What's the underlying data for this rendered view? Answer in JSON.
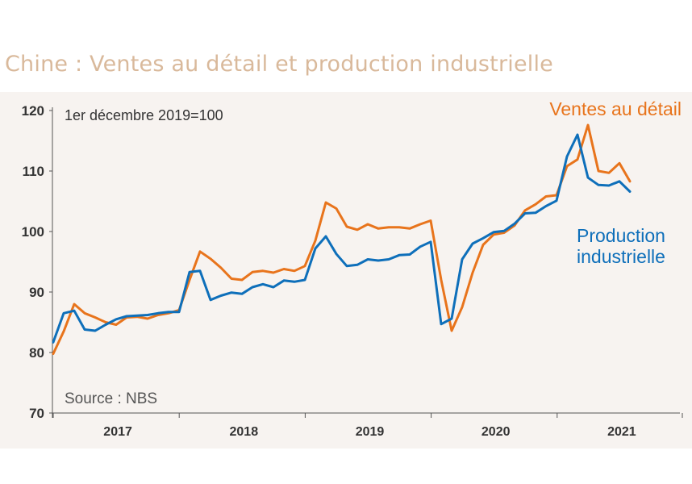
{
  "page_title": "Chine : Ventes au détail et production industrielle",
  "colors": {
    "title": "#d9b99b",
    "panel_bg": "#f7f3f0",
    "retail": "#e8741c",
    "industrial": "#0e6fba",
    "axis": "#555555",
    "text": "#333333",
    "source": "#555555"
  },
  "chart_data": {
    "type": "line",
    "title": "Chine : Ventes au détail et production industrielle",
    "index_note": "1er décembre 2019=100",
    "source": "Source : NBS",
    "ylim": [
      70,
      120
    ],
    "y_ticks": [
      "70",
      "80",
      "90",
      "100",
      "110",
      "120"
    ],
    "x_year_labels": [
      "2017",
      "2018",
      "2019",
      "2020",
      "2021"
    ],
    "x_start": 2016.58,
    "x_end": 2021.92,
    "series": [
      {
        "name": "Ventes au détail",
        "label_lines": [
          "Ventes au détail"
        ],
        "color": "#e8741c",
        "values": [
          79.8,
          83.5,
          88.0,
          86.5,
          85.8,
          85.0,
          84.6,
          85.8,
          85.9,
          85.6,
          86.2,
          86.5,
          87.0,
          92.0,
          96.7,
          95.5,
          94.0,
          92.2,
          92.0,
          93.3,
          93.5,
          93.2,
          93.8,
          93.5,
          94.3,
          98.5,
          104.8,
          103.8,
          100.8,
          100.3,
          101.2,
          100.5,
          100.7,
          100.7,
          100.5,
          101.2,
          101.8,
          92.0,
          83.6,
          87.5,
          93.2,
          97.8,
          99.5,
          99.8,
          101.0,
          103.5,
          104.5,
          105.8,
          106.0,
          110.8,
          111.9,
          117.6,
          110.0,
          109.7,
          111.3,
          108.3
        ]
      },
      {
        "name": "Production industrielle",
        "label_lines": [
          "Production",
          "industrielle"
        ],
        "color": "#0e6fba",
        "values": [
          81.7,
          86.5,
          86.9,
          83.8,
          83.6,
          84.6,
          85.5,
          86.0,
          86.1,
          86.2,
          86.5,
          86.7,
          86.7,
          93.3,
          93.5,
          88.7,
          89.4,
          89.9,
          89.7,
          90.8,
          91.3,
          90.8,
          91.9,
          91.7,
          92.0,
          97.2,
          99.2,
          96.3,
          94.3,
          94.5,
          95.4,
          95.2,
          95.4,
          96.1,
          96.2,
          97.5,
          98.3,
          84.7,
          85.6,
          95.4,
          98.0,
          98.9,
          99.9,
          100.1,
          101.3,
          103.0,
          103.1,
          104.2,
          105.1,
          112.4,
          116.0,
          108.9,
          107.7,
          107.6,
          108.3,
          106.6
        ]
      }
    ]
  }
}
